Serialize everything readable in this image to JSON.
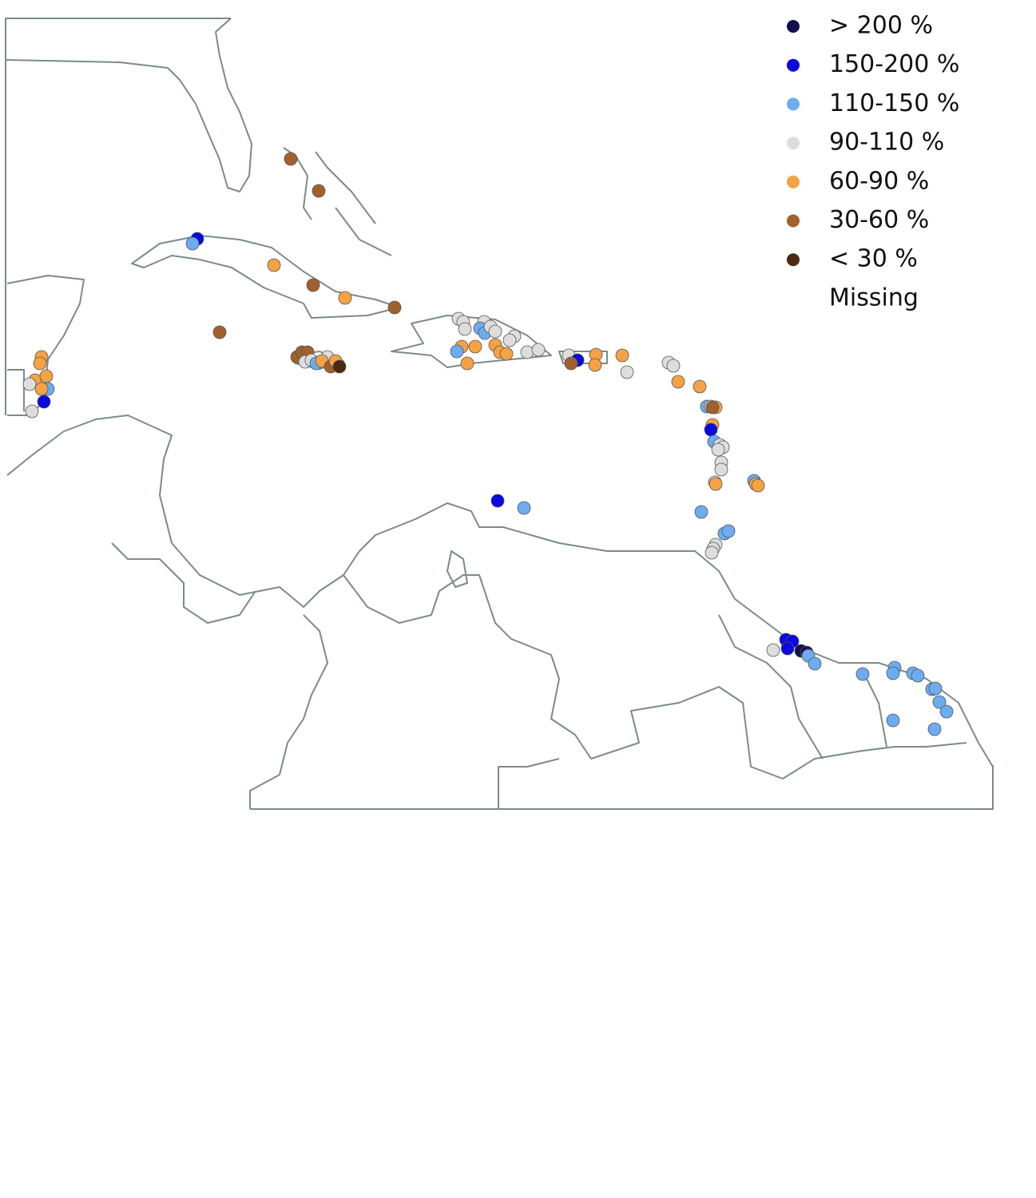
{
  "legend": {
    "items": [
      {
        "label": "> 200 %",
        "color": "#10104f"
      },
      {
        "label": "150-200 %",
        "color": "#0a0ae0"
      },
      {
        "label": "110-150 %",
        "color": "#6cacf0"
      },
      {
        "label": "90-110 %",
        "color": "#dddddd"
      },
      {
        "label": "60-90 %",
        "color": "#f5a245"
      },
      {
        "label": "30-60 %",
        "color": "#a0612c"
      },
      {
        "label": "< 30  %",
        "color": "#4a2b12"
      },
      {
        "label": "Missing"
      }
    ]
  }
}
